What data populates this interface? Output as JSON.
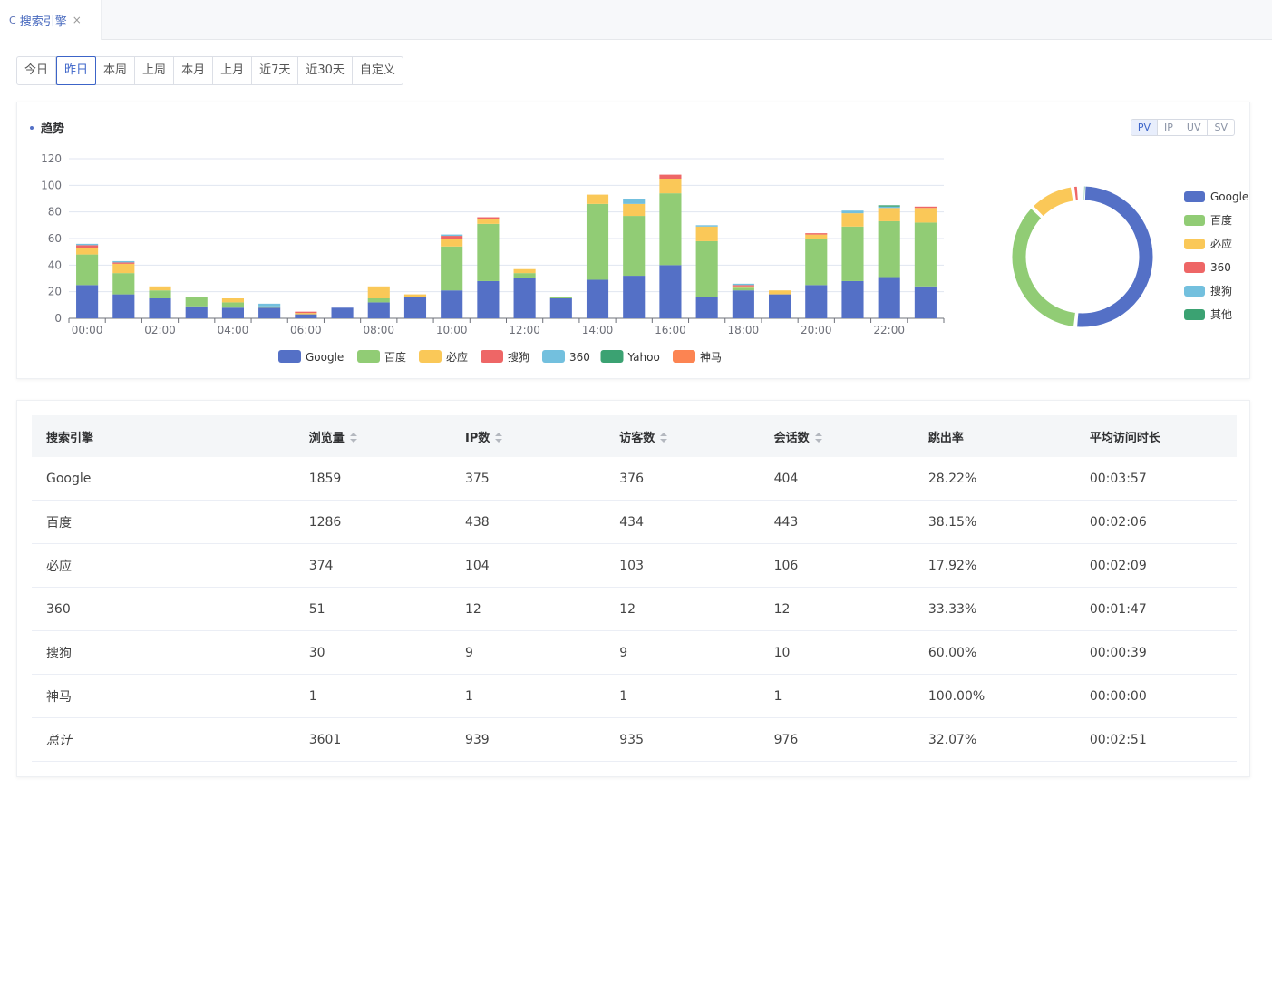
{
  "tab": {
    "title": "搜索引擎"
  },
  "periods": [
    "今日",
    "昨日",
    "本周",
    "上周",
    "本月",
    "上月",
    "近7天",
    "近30天",
    "自定义"
  ],
  "active_period": "昨日",
  "chart_card": {
    "title": "趋势",
    "metrics": [
      "PV",
      "IP",
      "UV",
      "SV"
    ],
    "active_metric": "PV"
  },
  "chart_data": [
    {
      "type": "bar",
      "stacked": true,
      "categories": [
        "00:00",
        "01:00",
        "02:00",
        "03:00",
        "04:00",
        "05:00",
        "06:00",
        "07:00",
        "08:00",
        "09:00",
        "10:00",
        "11:00",
        "12:00",
        "13:00",
        "14:00",
        "15:00",
        "16:00",
        "17:00",
        "18:00",
        "19:00",
        "20:00",
        "21:00",
        "22:00",
        "23:00"
      ],
      "x_tick_labels": [
        "00:00",
        "02:00",
        "04:00",
        "06:00",
        "08:00",
        "10:00",
        "12:00",
        "14:00",
        "16:00",
        "18:00",
        "20:00",
        "22:00"
      ],
      "ylim": [
        0,
        120
      ],
      "y_ticks": [
        0,
        20,
        40,
        60,
        80,
        100,
        120
      ],
      "grid": true,
      "legend_position": "bottom",
      "series": [
        {
          "name": "Google",
          "color": "#5470c6",
          "values": [
            25,
            18,
            15,
            9,
            8,
            8,
            3,
            8,
            12,
            16,
            21,
            28,
            30,
            15,
            29,
            32,
            40,
            16,
            21,
            18,
            25,
            28,
            31,
            24
          ]
        },
        {
          "name": "百度",
          "color": "#91cc75",
          "values": [
            23,
            16,
            6,
            7,
            4,
            1,
            0,
            0,
            3,
            0,
            33,
            43,
            4,
            1,
            57,
            45,
            54,
            42,
            2,
            0,
            35,
            41,
            42,
            48
          ]
        },
        {
          "name": "必应",
          "color": "#fac858",
          "values": [
            5,
            7,
            3,
            0,
            3,
            0,
            1,
            0,
            9,
            2,
            6,
            4,
            3,
            0,
            7,
            9,
            11,
            11,
            1,
            3,
            3,
            10,
            10,
            11
          ]
        },
        {
          "name": "搜狗",
          "color": "#ee6666",
          "values": [
            2,
            1,
            0,
            0,
            0,
            0,
            1,
            0,
            0,
            0,
            2,
            1,
            0,
            0,
            0,
            0,
            3,
            0,
            1,
            0,
            1,
            0,
            0,
            1
          ]
        },
        {
          "name": "360",
          "color": "#73c0de",
          "values": [
            1,
            1,
            0,
            0,
            0,
            2,
            0,
            0,
            0,
            0,
            1,
            0,
            0,
            0,
            0,
            4,
            0,
            1,
            1,
            0,
            0,
            2,
            1,
            0
          ]
        },
        {
          "name": "Yahoo",
          "color": "#3ba272",
          "values": [
            0,
            0,
            0,
            0,
            0,
            0,
            0,
            0,
            0,
            0,
            0,
            0,
            0,
            0,
            0,
            0,
            0,
            0,
            0,
            0,
            0,
            0,
            1,
            0
          ]
        },
        {
          "name": "神马",
          "color": "#fc8452",
          "values": [
            0,
            0,
            0,
            0,
            0,
            0,
            0,
            0,
            0,
            0,
            0,
            0,
            0,
            0,
            0,
            0,
            0,
            0,
            0,
            0,
            0,
            0,
            0,
            0
          ]
        }
      ]
    },
    {
      "type": "pie",
      "donut": true,
      "legend_position": "right",
      "slices": [
        {
          "name": "Google",
          "value": 1859,
          "color": "#5470c6"
        },
        {
          "name": "百度",
          "value": 1286,
          "color": "#91cc75"
        },
        {
          "name": "必应",
          "value": 374,
          "color": "#fac858"
        },
        {
          "name": "360",
          "value": 51,
          "color": "#ee6666"
        },
        {
          "name": "搜狗",
          "value": 30,
          "color": "#73c0de"
        },
        {
          "name": "其他",
          "value": 1,
          "color": "#3ba272"
        }
      ]
    }
  ],
  "table": {
    "headers": [
      {
        "label": "搜索引擎",
        "sortable": false
      },
      {
        "label": "浏览量",
        "sortable": true
      },
      {
        "label": "IP数",
        "sortable": true
      },
      {
        "label": "访客数",
        "sortable": true
      },
      {
        "label": "会话数",
        "sortable": true
      },
      {
        "label": "跳出率",
        "sortable": false
      },
      {
        "label": "平均访问时长",
        "sortable": false
      }
    ],
    "rows": [
      [
        "Google",
        "1859",
        "375",
        "376",
        "404",
        "28.22%",
        "00:03:57"
      ],
      [
        "百度",
        "1286",
        "438",
        "434",
        "443",
        "38.15%",
        "00:02:06"
      ],
      [
        "必应",
        "374",
        "104",
        "103",
        "106",
        "17.92%",
        "00:02:09"
      ],
      [
        "360",
        "51",
        "12",
        "12",
        "12",
        "33.33%",
        "00:01:47"
      ],
      [
        "搜狗",
        "30",
        "9",
        "9",
        "10",
        "60.00%",
        "00:00:39"
      ],
      [
        "神马",
        "1",
        "1",
        "1",
        "1",
        "100.00%",
        "00:00:00"
      ]
    ],
    "total": [
      "总计",
      "3601",
      "939",
      "935",
      "976",
      "32.07%",
      "00:02:51"
    ]
  }
}
